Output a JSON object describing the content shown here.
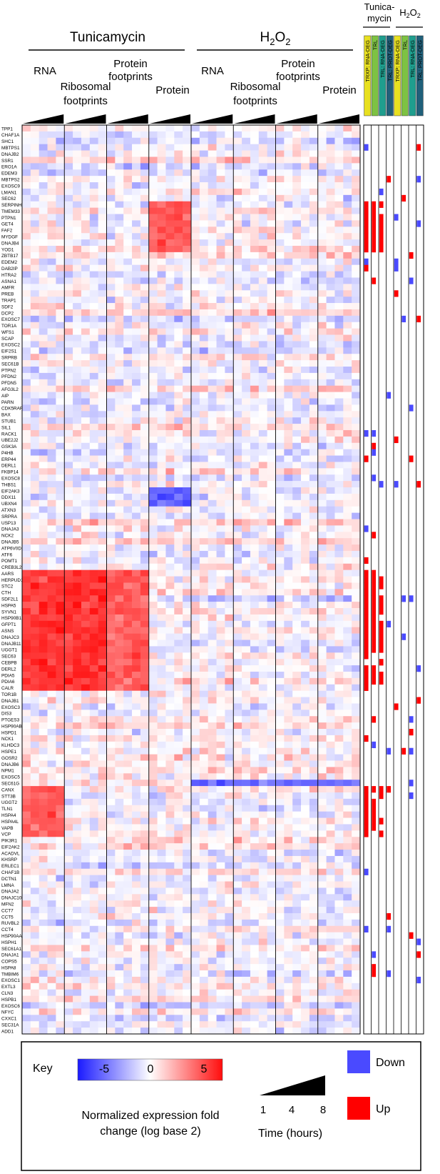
{
  "header": {
    "left_title": "Tunicamycin",
    "right_title": "H2O2",
    "right_title_base": "H",
    "right_title_sub": "2",
    "right_title_base2": "O",
    "right_title_sub2": "2",
    "left_labels": [
      "RNA",
      "Ribosomal",
      "footprints",
      "Protein",
      "footprints",
      "Protein"
    ],
    "right_labels": [
      "RNA",
      "Ribosomal",
      "footprints",
      "Protein",
      "footprints",
      "Protein"
    ],
    "ind_left_title_1": "Tunica-",
    "ind_left_title_2": "mycin",
    "ind_right_title": "H2O2",
    "ind_columns": [
      "TRXP: RNA-DEG",
      "TRL",
      "TRL: RNA-DEG",
      "TRL: PROT-DEG"
    ]
  },
  "legend": {
    "key_label": "Key",
    "ticks": [
      "-5",
      "0",
      "5"
    ],
    "caption_1": "Normalized expression fold",
    "caption_2": "change (log base 2)",
    "time_ticks": [
      "1",
      "4",
      "8"
    ],
    "time_label": "Time (hours)",
    "down_label": "Down",
    "up_label": "Up",
    "down_color": "#4a4aff",
    "up_color": "#ff0000",
    "scale_low_color": "#1a1aff",
    "scale_mid_color": "#ffffff",
    "scale_high_color": "#ff0d0d"
  },
  "chart_data": {
    "type": "heatmap",
    "value_range": [
      -6,
      6
    ],
    "time_points_hours": [
      1,
      4,
      8
    ],
    "treatments": [
      "Tunicamycin",
      "H2O2"
    ],
    "assays": [
      "RNA",
      "Ribosomal footprints",
      "Protein footprints",
      "Protein"
    ],
    "columns_per_assay": 5,
    "genes": [
      "TPP1",
      "CHAF1A",
      "SHC1",
      "MBTPS1",
      "DNAJB2",
      "SSR1",
      "ERO1A",
      "EDEM3",
      "MBTPS2",
      "EXOSC9",
      "LMAN1",
      "SEC62",
      "SERPINH1",
      "TMEM33",
      "PTPN1",
      "GET4",
      "FAF2",
      "MYDGF",
      "DNAJB4",
      "YOD1",
      "ZBTB17",
      "EDEM2",
      "DAB2IP",
      "HTRA2",
      "ASNA1",
      "AMFR",
      "PREB",
      "TRAP1",
      "SDF2",
      "DCP2",
      "EXOSC7",
      "TOR1A",
      "WFS1",
      "SCAP",
      "EXOSC2",
      "EIF2S1",
      "SRPRB",
      "SEC61B",
      "PTPN2",
      "PFDN2",
      "PFDN5",
      "AFG3L2",
      "AIP",
      "PARN",
      "CDK5RAP3",
      "BAX",
      "STUB1",
      "SIL1",
      "RACK1",
      "UBE2J2",
      "GSK3A",
      "P4HB",
      "ERP44",
      "DERL1",
      "FKBP14",
      "EXOSC8",
      "THBS1",
      "EIF2AK3",
      "DDX11",
      "UBXN4",
      "ATXN3",
      "SRPRA",
      "USP13",
      "DNAJA3",
      "NCK2",
      "DNAJB5",
      "ATP6V0D1",
      "ATF6",
      "POMT1",
      "CREB3L2",
      "AARS",
      "HERPUD1",
      "STC2",
      "CTH",
      "SDF2L1",
      "HSPA5",
      "SYVN1",
      "HSP90B1",
      "GFPT1",
      "ASNS",
      "DNAJC3",
      "DNAJB11",
      "UGGT1",
      "SEC63",
      "CEBPB",
      "DERL2",
      "PDIA5",
      "PDIA6",
      "CALR",
      "TOR1B",
      "DNAJB1",
      "EXOSC3",
      "DIS3",
      "PTGES3",
      "HSP90AB1",
      "HSPD1",
      "NCK1",
      "KLHDC3",
      "HSPE1",
      "GOSR2",
      "DNAJB6",
      "NPM1",
      "EXOSC5",
      "SEC61G",
      "CANX",
      "STT3B",
      "UGGT2",
      "TLN1",
      "HSPA4",
      "HSPA4L",
      "VAPB",
      "VCP",
      "PIK3R1",
      "EIF2AK2",
      "ACADVL",
      "KHSRP",
      "ERLEC1",
      "CHAF1B",
      "DCTN1",
      "LMNA",
      "DNAJA2",
      "DNAJC10",
      "MFN2",
      "CCT7",
      "CCT5",
      "RUVBL2",
      "CCT4",
      "HSP90AA1",
      "HSPH1",
      "SEC61A1",
      "DNAJA1",
      "COPS5",
      "HSPA8",
      "TMBIM6",
      "EXOSC1",
      "EXTL3",
      "CLN3",
      "HSPB1",
      "EXOSC6",
      "NFYC",
      "CXXC1",
      "SEC31A",
      "ADD1"
    ],
    "strong_up": [
      {
        "gene_from": "AARS",
        "gene_to": "CALR",
        "group": "Tunicamycin RNA",
        "approx_value": 5
      },
      {
        "gene_from": "AARS",
        "gene_to": "CALR",
        "group": "Tunicamycin Ribosomal footprints",
        "approx_value": 5
      },
      {
        "gene_from": "AARS",
        "gene_to": "CALR",
        "group": "Tunicamycin Protein footprints",
        "approx_value": 4
      },
      {
        "gene_from": "SERPINH1",
        "gene_to": "YOD1",
        "group": "Tunicamycin Protein",
        "approx_value": 4
      },
      {
        "gene_from": "CANX",
        "gene_to": "VCP",
        "group": "Tunicamycin RNA",
        "approx_value": 4
      }
    ],
    "strong_down": [
      {
        "gene_from": "EIF2AK3",
        "gene_to": "UBXN4",
        "group": "Tunicamycin Protein",
        "approx_value": -4
      },
      {
        "gene_from": "SEC61G",
        "gene_to": "SEC61G",
        "group": "H2O2 all",
        "approx_value": -4
      }
    ],
    "indicator_values": [
      "Down",
      "Up"
    ]
  }
}
